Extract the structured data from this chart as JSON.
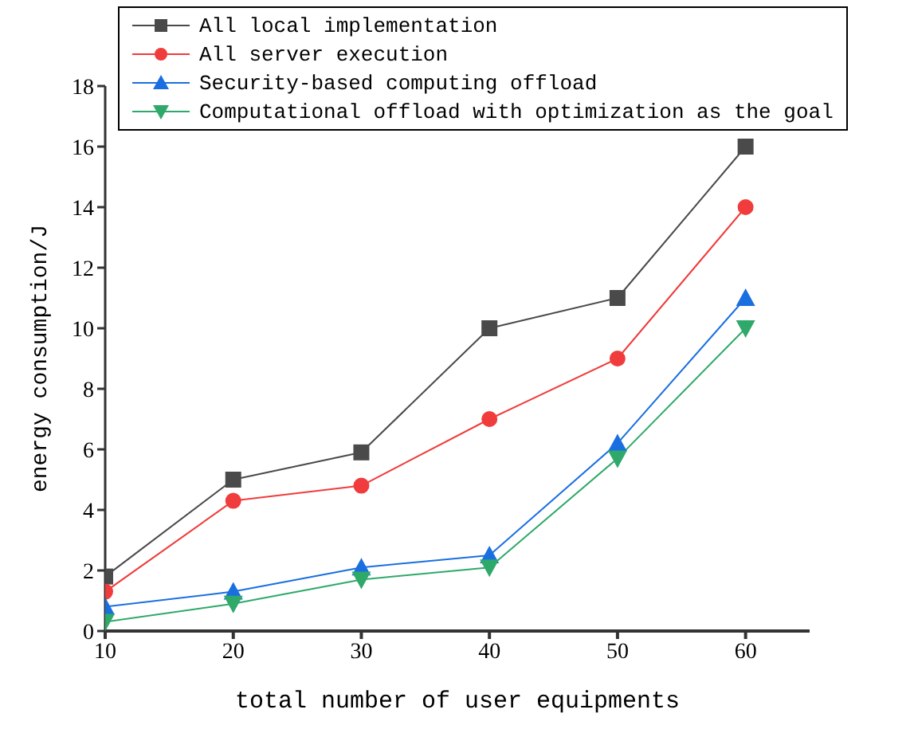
{
  "chart_data": {
    "type": "line",
    "xlabel": "total number of user equipments",
    "ylabel": "energy consumption/J",
    "x": [
      10,
      20,
      30,
      40,
      50,
      60
    ],
    "xlim": [
      10,
      65
    ],
    "xticks": [
      10,
      20,
      30,
      40,
      50,
      60
    ],
    "ylim": [
      0,
      18
    ],
    "yticks": [
      0,
      2,
      4,
      6,
      8,
      10,
      12,
      14,
      16,
      18
    ],
    "grid": false,
    "legend": "top",
    "line_style": "solid",
    "series": [
      {
        "name": "All local implementation",
        "color": "#4a4a4a",
        "marker": "square",
        "values": [
          1.8,
          5.0,
          5.9,
          10.0,
          11.0,
          16.0
        ]
      },
      {
        "name": "All server execution",
        "color": "#f03c3c",
        "marker": "circle",
        "values": [
          1.3,
          4.3,
          4.8,
          7.0,
          9.0,
          14.0
        ]
      },
      {
        "name": "Security-based computing offload",
        "color": "#1a6fe0",
        "marker": "triangle",
        "values": [
          0.8,
          1.3,
          2.1,
          2.5,
          6.2,
          11.0
        ]
      },
      {
        "name": "Computational offload with optimization as the goal",
        "color": "#2fa96a",
        "marker": "triangle-down",
        "values": [
          0.3,
          0.9,
          1.7,
          2.1,
          5.7,
          10.0
        ]
      }
    ]
  }
}
